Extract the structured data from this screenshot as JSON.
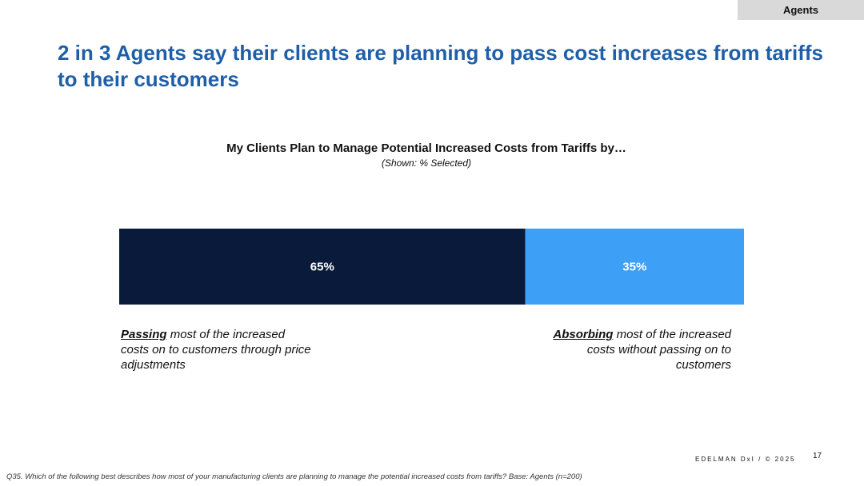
{
  "tag": "Agents",
  "headline": "2 in 3 Agents say their clients are planning to pass cost increases from tariffs to their customers",
  "chart_data": {
    "type": "bar",
    "orientation": "horizontal-stacked",
    "title": "My Clients Plan to Manage Potential Increased Costs from Tariffs by…",
    "subtitle": "(Shown: % Selected)",
    "unit": "%",
    "series": [
      {
        "value": 65,
        "label": "65%",
        "color": "#0a1a3a"
      },
      {
        "value": 35,
        "label": "35%",
        "color": "#3d9ff5"
      }
    ],
    "annotations": [
      {
        "emphasis": "Passing",
        "text": " most of the increased costs on to customers through price adjustments",
        "align": "left"
      },
      {
        "emphasis": "Absorbing",
        "text": " most of the increased costs without passing on to customers",
        "align": "right"
      }
    ]
  },
  "footer": {
    "brand": "EDELMAN DxI / © 2025",
    "page": "17",
    "footnote": "Q35. Which of the following best describes how most of your manufacturing clients are planning to manage the potential increased costs from tariffs? Base: Agents (n=200)"
  }
}
